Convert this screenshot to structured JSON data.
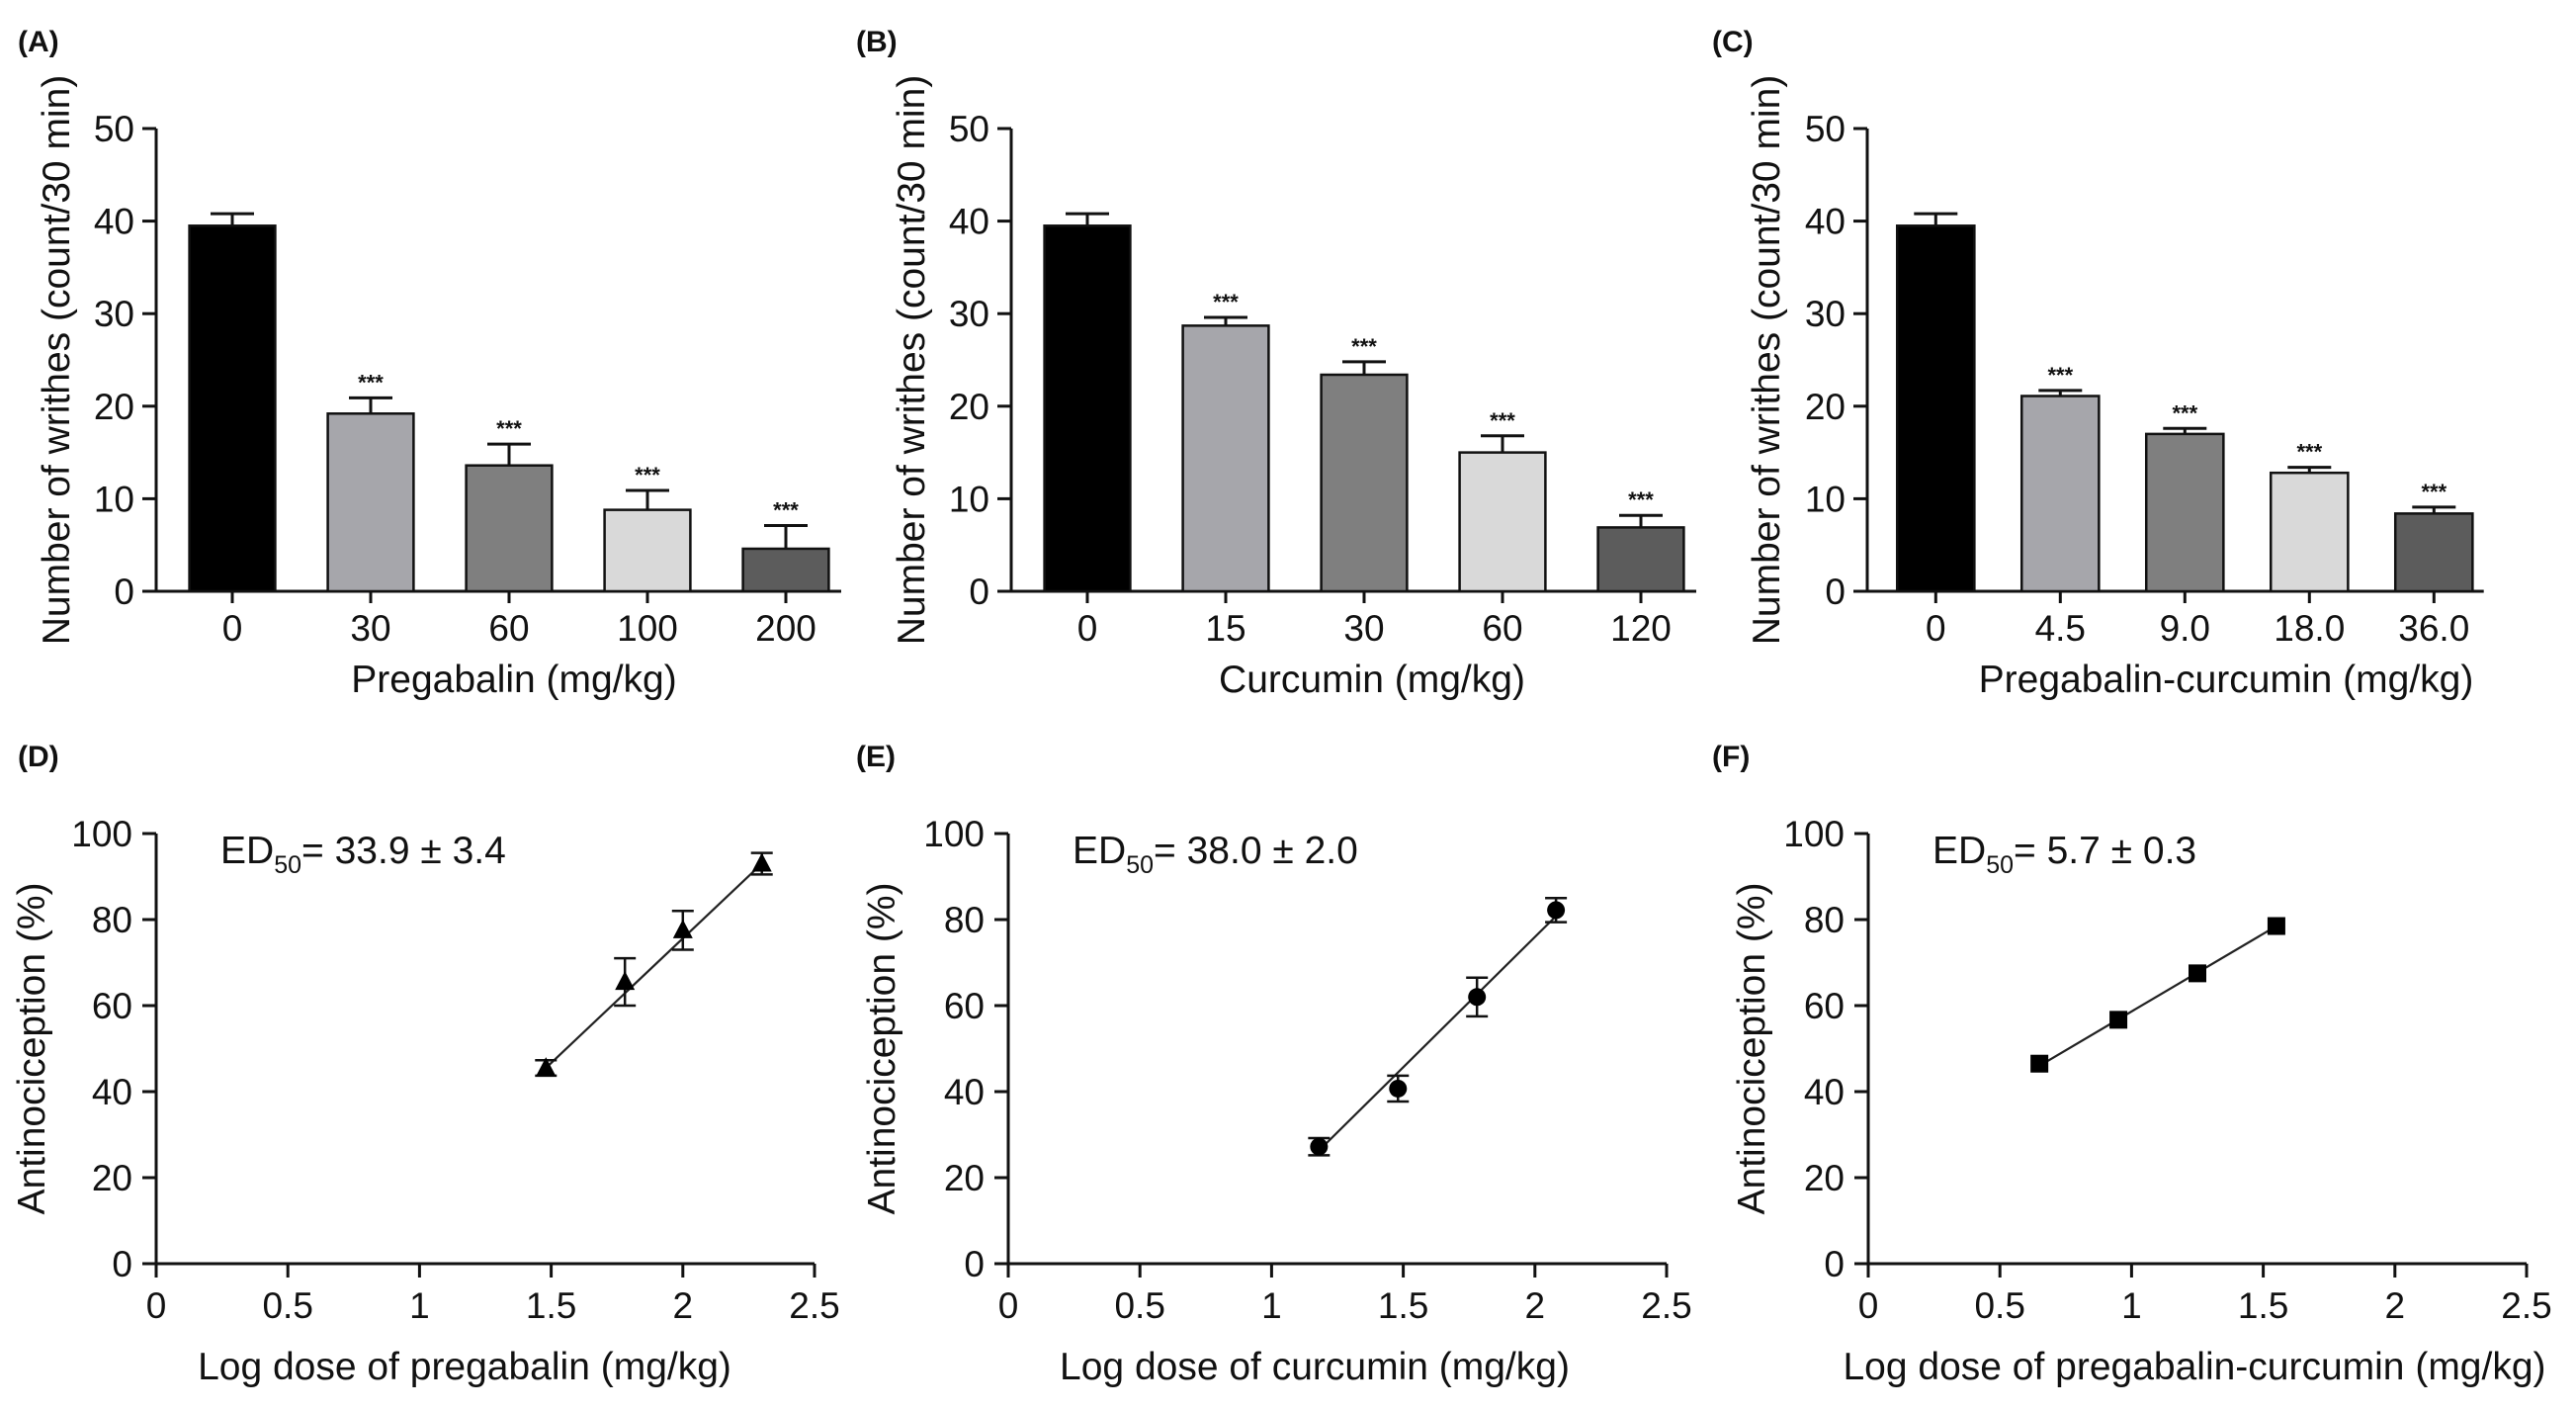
{
  "chart_data": [
    {
      "type": "bar",
      "panel": "(A)",
      "ylabel": "Number of writhes (count/30 min)",
      "xlabel": "Pregabalin (mg/kg)",
      "ylim": [
        0,
        50
      ],
      "yticks": [
        0,
        10,
        20,
        30,
        40,
        50
      ],
      "categories": [
        "0",
        "30",
        "60",
        "100",
        "200"
      ],
      "values": [
        39.5,
        19.2,
        13.6,
        8.8,
        4.6
      ],
      "errors": [
        1.3,
        1.7,
        2.3,
        2.1,
        2.5
      ],
      "significance": [
        "",
        "***",
        "***",
        "***",
        "***"
      ],
      "colors": [
        "#000000",
        "#a6a6ab",
        "#7f7f7f",
        "#d9d9d9",
        "#5c5c5c"
      ]
    },
    {
      "type": "bar",
      "panel": "(B)",
      "ylabel": "Number of writhes (count/30 min)",
      "xlabel": "Curcumin (mg/kg)",
      "ylim": [
        0,
        50
      ],
      "yticks": [
        0,
        10,
        20,
        30,
        40,
        50
      ],
      "categories": [
        "0",
        "15",
        "30",
        "60",
        "120"
      ],
      "values": [
        39.5,
        28.7,
        23.4,
        15.0,
        6.9
      ],
      "errors": [
        1.3,
        0.9,
        1.4,
        1.8,
        1.3
      ],
      "significance": [
        "",
        "***",
        "***",
        "***",
        "***"
      ],
      "colors": [
        "#000000",
        "#a6a6ab",
        "#7f7f7f",
        "#d9d9d9",
        "#5c5c5c"
      ]
    },
    {
      "type": "bar",
      "panel": "(C)",
      "ylabel": "Number of writhes (count/30 min)",
      "xlabel": "Pregabalin-curcumin (mg/kg)",
      "ylim": [
        0,
        50
      ],
      "yticks": [
        0,
        10,
        20,
        30,
        40,
        50
      ],
      "categories": [
        "0",
        "4.5",
        "9.0",
        "18.0",
        "36.0"
      ],
      "values": [
        39.5,
        21.1,
        17.0,
        12.8,
        8.4
      ],
      "errors": [
        1.3,
        0.6,
        0.6,
        0.6,
        0.7
      ],
      "significance": [
        "",
        "***",
        "***",
        "***",
        "***"
      ],
      "colors": [
        "#000000",
        "#a6a6ab",
        "#7f7f7f",
        "#d9d9d9",
        "#5c5c5c"
      ]
    },
    {
      "type": "scatter",
      "panel": "(D)",
      "ylabel": "Antinociception (%)",
      "xlabel": "Log dose of pregabalin (mg/kg)",
      "xlim": [
        0,
        2.5
      ],
      "ylim": [
        0,
        100
      ],
      "xticks": [
        "0",
        "0.5",
        "1",
        "1.5",
        "2",
        "2.5"
      ],
      "yticks": [
        0,
        20,
        40,
        60,
        80,
        100
      ],
      "marker": "triangle",
      "x": [
        1.48,
        1.78,
        2.0,
        2.3
      ],
      "y": [
        45.5,
        65.5,
        77.5,
        93.0
      ],
      "errors": [
        1.8,
        5.5,
        4.5,
        2.5
      ],
      "fit_line": [
        [
          1.48,
          45.5
        ],
        [
          2.3,
          93.0
        ]
      ],
      "ed50": {
        "prefix": "ED",
        "sub": "50",
        "value": " = 33.9 ± 3.4"
      }
    },
    {
      "type": "scatter",
      "panel": "(E)",
      "ylabel": "Antinociception (%)",
      "xlabel": "Log dose of curcumin (mg/kg)",
      "xlim": [
        0,
        2.5
      ],
      "ylim": [
        0,
        100
      ],
      "xticks": [
        "0",
        "0.5",
        "1",
        "1.5",
        "2",
        "2.5"
      ],
      "yticks": [
        0,
        20,
        40,
        60,
        80,
        100
      ],
      "marker": "circle",
      "x": [
        1.18,
        1.48,
        1.78,
        2.08
      ],
      "y": [
        27.2,
        40.7,
        62.0,
        82.2
      ],
      "errors": [
        2.0,
        3.0,
        4.5,
        2.8
      ],
      "fit_line": [
        [
          1.18,
          26.3
        ],
        [
          2.08,
          80.8
        ]
      ],
      "ed50": {
        "prefix": "ED",
        "sub": "50",
        "value": " = 38.0 ± 2.0"
      }
    },
    {
      "type": "scatter",
      "panel": "(F)",
      "ylabel": "Antinociception (%)",
      "xlabel": "Log dose of pregabalin-curcumin (mg/kg)",
      "xlim": [
        0,
        2.5
      ],
      "ylim": [
        0,
        100
      ],
      "xticks": [
        "0",
        "0.5",
        "1",
        "1.5",
        "2",
        "2.5"
      ],
      "yticks": [
        0,
        20,
        40,
        60,
        80,
        100
      ],
      "marker": "square",
      "x": [
        0.65,
        0.95,
        1.25,
        1.55
      ],
      "y": [
        46.5,
        56.7,
        67.5,
        78.5
      ],
      "errors": [
        0.8,
        0.8,
        0.8,
        0.8
      ],
      "fit_line": [
        [
          0.65,
          46.0
        ],
        [
          1.55,
          78.5
        ]
      ],
      "ed50": {
        "prefix": "ED",
        "sub": "50",
        "value": " = 5.7 ± 0.3"
      }
    }
  ]
}
